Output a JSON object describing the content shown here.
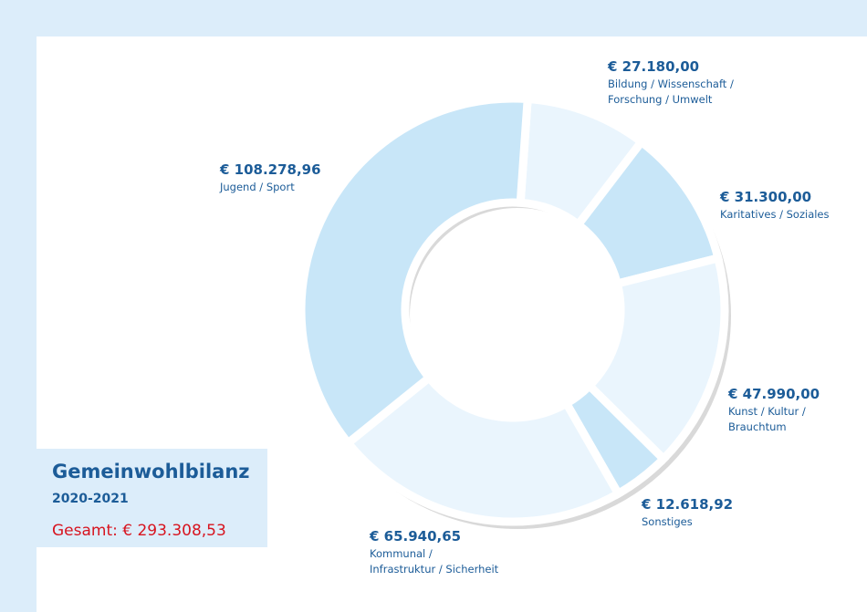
{
  "chart_data": {
    "type": "donut",
    "title": "Gemeinwohlbilanz",
    "subtitle": "2020-2021",
    "total": "Gesamt: € 293.308,53",
    "categories": [
      [
        "Bildung / Wissenschaft /",
        "Forschung / Umwelt"
      ],
      [
        "Karitatives / Soziales"
      ],
      [
        "Kunst / Kultur /",
        "Brauchtum"
      ],
      [
        "Sonstiges"
      ],
      [
        "Kommunal /",
        "Infrastruktur / Sicherheit"
      ],
      [
        "Jugend / Sport"
      ]
    ],
    "values": [
      27180,
      31300,
      47990,
      12618.92,
      65940.65,
      108278.96
    ],
    "value_labels": [
      "€ 27.180,00",
      "€ 31.300,00",
      "€ 47.990,00",
      "€ 12.618,92",
      "€ 65.940,65",
      "€ 108.278,96"
    ],
    "colors": [
      "#eaf5fd",
      "#c8e6f8",
      "#eaf5fd",
      "#c8e6f8",
      "#eaf5fd",
      "#c8e6f8"
    ]
  }
}
